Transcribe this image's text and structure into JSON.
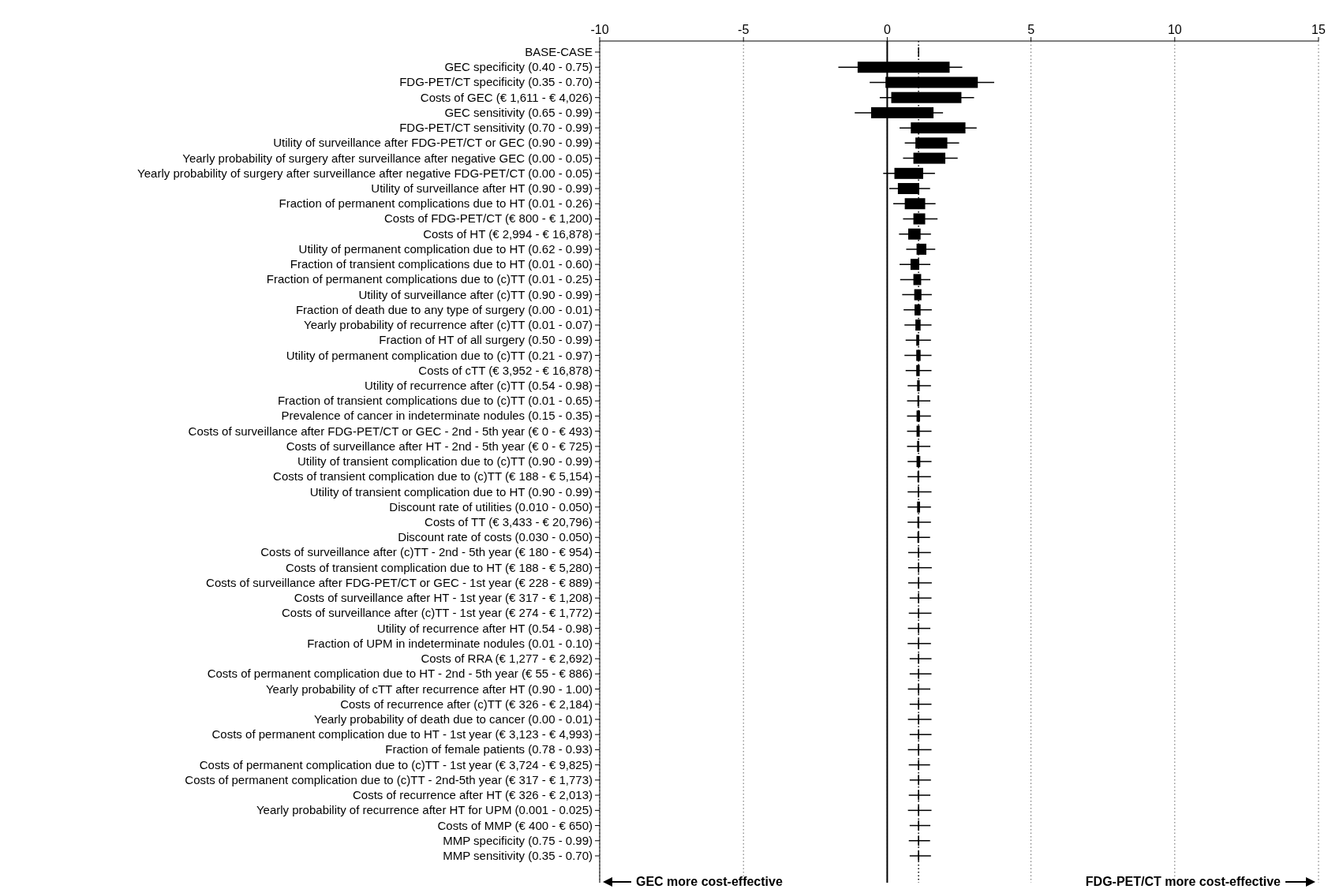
{
  "chart_data": {
    "type": "box",
    "orientation": "horizontal",
    "color": "#000000",
    "categories": [
      "BASE-CASE",
      "GEC specificity (0.40 - 0.75)",
      "FDG-PET/CT specificity (0.35 - 0.70)",
      "Costs of GEC (€ 1,611 - € 4,026)",
      "GEC sensitivity (0.65 - 0.99)",
      "FDG-PET/CT sensitivity (0.70 - 0.99)",
      "Utility of surveillance after FDG-PET/CT or GEC (0.90 - 0.99)",
      "Yearly probability of surgery after surveillance after negative GEC (0.00 - 0.05)",
      "Yearly probability of surgery after surveillance after negative FDG-PET/CT (0.00 - 0.05)",
      "Utility of surveillance after HT (0.90 - 0.99)",
      "Fraction of permanent complications due to HT (0.01 - 0.26)",
      "Costs of FDG-PET/CT (€ 800 - € 1,200)",
      "Costs of HT (€ 2,994 - € 16,878)",
      "Utility of permanent complication due to HT (0.62 - 0.99)",
      "Fraction of transient complications due to HT (0.01 - 0.60)",
      "Fraction of permanent complications due to (c)TT (0.01 - 0.25)",
      "Utility of surveillance after (c)TT (0.90 - 0.99)",
      "Fraction of death due to any type of surgery (0.00 - 0.01)",
      "Yearly probability of recurrence after (c)TT (0.01 - 0.07)",
      "Fraction of HT of all surgery (0.50 - 0.99)",
      "Utility of permanent complication due to (c)TT (0.21 - 0.97)",
      "Costs of cTT (€ 3,952 - € 16,878)",
      "Utility of recurrence after (c)TT (0.54 - 0.98)",
      "Fraction of transient complications due to (c)TT (0.01 - 0.65)",
      "Prevalence of cancer in indeterminate nodules (0.15 - 0.35)",
      "Costs of surveillance after FDG-PET/CT or GEC - 2nd - 5th year (€ 0 - € 493)",
      "Costs of surveillance after HT - 2nd - 5th year (€ 0 - € 725)",
      "Utility of transient complication due to (c)TT (0.90 - 0.99)",
      "Costs of transient complication due to (c)TT (€ 188 - € 5,154)",
      "Utility of transient complication due to HT (0.90 - 0.99)",
      "Discount rate of utilities (0.010 - 0.050)",
      "Costs of TT (€ 3,433 - € 20,796)",
      "Discount rate of costs (0.030 - 0.050)",
      "Costs of surveillance after (c)TT - 2nd - 5th year (€ 180 - € 954)",
      "Costs of transient complication due to HT (€ 188 - € 5,280)",
      "Costs of surveillance after FDG-PET/CT or GEC - 1st year (€ 228 - € 889)",
      "Costs of surveillance after HT - 1st year (€ 317 - € 1,208)",
      "Costs of surveillance after (c)TT - 1st year (€ 274 - € 1,772)",
      "Utility of recurrence after HT (0.54 - 0.98)",
      "Fraction of UPM in indeterminate nodules (0.01 - 0.10)",
      "Costs of RRA (€ 1,277 - € 2,692)",
      "Costs of permanent complication due to HT - 2nd - 5th year (€ 55 - € 886)",
      "Yearly probability of cTT after recurrence after HT (0.90 - 1.00)",
      "Costs of recurrence after (c)TT (€ 326 - € 2,184)",
      "Yearly probability of death due to cancer (0.00 - 0.01)",
      "Costs of permanent complication due to HT - 1st year (€ 3,123 - € 4,993)",
      "Fraction of female patients (0.78 - 0.93)",
      "Costs of permanent complication due to (c)TT - 1st year (€ 3,724 - € 9,825)",
      "Costs of permanent complication due to (c)TT - 2nd-5th year (€ 317 - € 1,773)",
      "Costs of recurrence after HT (€ 326 - € 2,013)",
      "Yearly probability of recurrence after HT for UPM (0.001 - 0.025)",
      "Costs of MMP (€ 400 - € 650)",
      "MMP specificity (0.75 - 0.99)",
      "MMP sensitivity (0.35 - 0.70)"
    ],
    "boxes": [
      {
        "low": 1.09,
        "q1": 1.09,
        "median": 1.09,
        "q3": 1.09,
        "high": 1.09
      },
      {
        "low": -1.7,
        "q1": -1.03,
        "median": 1.09,
        "q3": 2.17,
        "high": 2.61
      },
      {
        "low": -0.61,
        "q1": -0.06,
        "median": 1.09,
        "q3": 3.15,
        "high": 3.72
      },
      {
        "low": -0.26,
        "q1": 0.14,
        "median": 1.09,
        "q3": 2.58,
        "high": 3.02
      },
      {
        "low": -1.13,
        "q1": -0.56,
        "median": 1.09,
        "q3": 1.61,
        "high": 1.94
      },
      {
        "low": 0.43,
        "q1": 0.82,
        "median": 1.09,
        "q3": 2.72,
        "high": 3.11
      },
      {
        "low": 0.61,
        "q1": 0.98,
        "median": 1.09,
        "q3": 2.09,
        "high": 2.5
      },
      {
        "low": 0.55,
        "q1": 0.91,
        "median": 1.09,
        "q3": 2.02,
        "high": 2.45
      },
      {
        "low": -0.14,
        "q1": 0.25,
        "median": 1.09,
        "q3": 1.25,
        "high": 1.66
      },
      {
        "low": 0.07,
        "q1": 0.37,
        "median": 1.09,
        "q3": 1.11,
        "high": 1.49
      },
      {
        "low": 0.21,
        "q1": 0.61,
        "median": 1.09,
        "q3": 1.32,
        "high": 1.68
      },
      {
        "low": 0.55,
        "q1": 0.91,
        "median": 1.09,
        "q3": 1.32,
        "high": 1.75
      },
      {
        "low": 0.41,
        "q1": 0.73,
        "median": 1.09,
        "q3": 1.16,
        "high": 1.52
      },
      {
        "low": 0.66,
        "q1": 1.02,
        "median": 1.09,
        "q3": 1.36,
        "high": 1.67
      },
      {
        "low": 0.43,
        "q1": 0.81,
        "median": 1.09,
        "q3": 1.11,
        "high": 1.5
      },
      {
        "low": 0.45,
        "q1": 0.91,
        "median": 1.09,
        "q3": 1.18,
        "high": 1.5
      },
      {
        "low": 0.52,
        "q1": 0.94,
        "median": 1.09,
        "q3": 1.19,
        "high": 1.55
      },
      {
        "low": 0.57,
        "q1": 0.95,
        "median": 1.09,
        "q3": 1.16,
        "high": 1.55
      },
      {
        "low": 0.6,
        "q1": 0.98,
        "median": 1.09,
        "q3": 1.16,
        "high": 1.54
      },
      {
        "low": 0.64,
        "q1": 1.01,
        "median": 1.09,
        "q3": 1.11,
        "high": 1.52
      },
      {
        "low": 0.6,
        "q1": 1.01,
        "median": 1.09,
        "q3": 1.16,
        "high": 1.54
      },
      {
        "low": 0.64,
        "q1": 1.01,
        "median": 1.09,
        "q3": 1.13,
        "high": 1.54
      },
      {
        "low": 0.71,
        "q1": 1.04,
        "median": 1.09,
        "q3": 1.13,
        "high": 1.52
      },
      {
        "low": 0.69,
        "q1": 1.05,
        "median": 1.09,
        "q3": 1.11,
        "high": 1.5
      },
      {
        "low": 0.69,
        "q1": 1.02,
        "median": 1.09,
        "q3": 1.14,
        "high": 1.52
      },
      {
        "low": 0.69,
        "q1": 1.02,
        "median": 1.09,
        "q3": 1.13,
        "high": 1.54
      },
      {
        "low": 0.69,
        "q1": 1.04,
        "median": 1.09,
        "q3": 1.11,
        "high": 1.5
      },
      {
        "low": 0.71,
        "q1": 1.02,
        "median": 1.09,
        "q3": 1.15,
        "high": 1.54
      },
      {
        "low": 0.71,
        "q1": 1.05,
        "median": 1.09,
        "q3": 1.11,
        "high": 1.52
      },
      {
        "low": 0.71,
        "q1": 1.06,
        "median": 1.09,
        "q3": 1.1,
        "high": 1.54
      },
      {
        "low": 0.71,
        "q1": 1.04,
        "median": 1.09,
        "q3": 1.14,
        "high": 1.52
      },
      {
        "low": 0.71,
        "q1": 1.05,
        "median": 1.09,
        "q3": 1.11,
        "high": 1.52
      },
      {
        "low": 0.71,
        "q1": 1.05,
        "median": 1.09,
        "q3": 1.11,
        "high": 1.49
      },
      {
        "low": 0.73,
        "q1": 1.07,
        "median": 1.09,
        "q3": 1.1,
        "high": 1.52
      },
      {
        "low": 0.73,
        "q1": 1.08,
        "median": 1.09,
        "q3": 1.1,
        "high": 1.55
      },
      {
        "low": 0.73,
        "q1": 1.08,
        "median": 1.09,
        "q3": 1.1,
        "high": 1.55
      },
      {
        "low": 0.78,
        "q1": 1.08,
        "median": 1.09,
        "q3": 1.1,
        "high": 1.54
      },
      {
        "low": 0.75,
        "q1": 1.08,
        "median": 1.09,
        "q3": 1.1,
        "high": 1.54
      },
      {
        "low": 0.72,
        "q1": 1.08,
        "median": 1.09,
        "q3": 1.1,
        "high": 1.5
      },
      {
        "low": 0.71,
        "q1": 1.08,
        "median": 1.09,
        "q3": 1.1,
        "high": 1.52
      },
      {
        "low": 0.78,
        "q1": 1.08,
        "median": 1.09,
        "q3": 1.1,
        "high": 1.54
      },
      {
        "low": 0.78,
        "q1": 1.08,
        "median": 1.09,
        "q3": 1.1,
        "high": 1.54
      },
      {
        "low": 0.72,
        "q1": 1.08,
        "median": 1.09,
        "q3": 1.1,
        "high": 1.5
      },
      {
        "low": 0.78,
        "q1": 1.08,
        "median": 1.09,
        "q3": 1.1,
        "high": 1.54
      },
      {
        "low": 0.72,
        "q1": 1.08,
        "median": 1.09,
        "q3": 1.1,
        "high": 1.54
      },
      {
        "low": 0.78,
        "q1": 1.08,
        "median": 1.09,
        "q3": 1.1,
        "high": 1.54
      },
      {
        "low": 0.72,
        "q1": 1.08,
        "median": 1.09,
        "q3": 1.1,
        "high": 1.54
      },
      {
        "low": 0.75,
        "q1": 1.08,
        "median": 1.09,
        "q3": 1.1,
        "high": 1.49
      },
      {
        "low": 0.78,
        "q1": 1.08,
        "median": 1.09,
        "q3": 1.1,
        "high": 1.52
      },
      {
        "low": 0.75,
        "q1": 1.08,
        "median": 1.09,
        "q3": 1.1,
        "high": 1.5
      },
      {
        "low": 0.72,
        "q1": 1.08,
        "median": 1.09,
        "q3": 1.1,
        "high": 1.54
      },
      {
        "low": 0.78,
        "q1": 1.08,
        "median": 1.09,
        "q3": 1.1,
        "high": 1.5
      },
      {
        "low": 0.75,
        "q1": 1.08,
        "median": 1.09,
        "q3": 1.1,
        "high": 1.49
      },
      {
        "low": 0.78,
        "q1": 1.08,
        "median": 1.09,
        "q3": 1.1,
        "high": 1.52
      }
    ],
    "xlim": [
      -10,
      15
    ],
    "xticks": [
      -10,
      -5,
      0,
      5,
      10,
      15
    ],
    "grid": "x",
    "ref_lines": [
      {
        "axis": "x",
        "value": 0,
        "line_style": "solid"
      },
      {
        "axis": "x",
        "value": 1.09,
        "line_style": "dotted"
      }
    ],
    "annotations": [
      "GEC more cost-effective",
      "FDG-PET/CT more cost-effective"
    ]
  }
}
